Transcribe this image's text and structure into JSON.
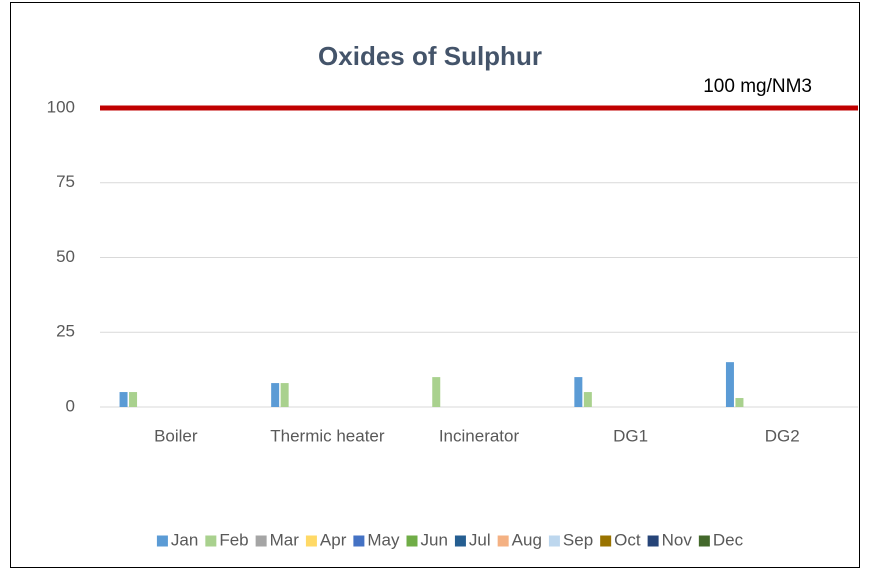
{
  "chart_data": {
    "type": "bar",
    "title": "Oxides of Sulphur",
    "categories": [
      "Boiler",
      "Thermic heater",
      "Incinerator",
      "DG1",
      "DG2"
    ],
    "series": [
      {
        "name": "Jan",
        "color": "#5b9bd5",
        "values": [
          5,
          8,
          null,
          10,
          15
        ]
      },
      {
        "name": "Feb",
        "color": "#a9d18e",
        "values": [
          5,
          8,
          10,
          5,
          3
        ]
      },
      {
        "name": "Mar",
        "color": "#a5a5a5",
        "values": [
          null,
          null,
          null,
          null,
          null
        ]
      },
      {
        "name": "Apr",
        "color": "#ffd966",
        "values": [
          null,
          null,
          null,
          null,
          null
        ]
      },
      {
        "name": "May",
        "color": "#4472c4",
        "values": [
          null,
          null,
          null,
          null,
          null
        ]
      },
      {
        "name": "Jun",
        "color": "#70ad47",
        "values": [
          null,
          null,
          null,
          null,
          null
        ]
      },
      {
        "name": "Jul",
        "color": "#255e91",
        "values": [
          null,
          null,
          null,
          null,
          null
        ]
      },
      {
        "name": "Aug",
        "color": "#f4b183",
        "values": [
          null,
          null,
          null,
          null,
          null
        ]
      },
      {
        "name": "Sep",
        "color": "#bdd7ee",
        "values": [
          null,
          null,
          null,
          null,
          null
        ]
      },
      {
        "name": "Oct",
        "color": "#997300",
        "values": [
          null,
          null,
          null,
          null,
          null
        ]
      },
      {
        "name": "Nov",
        "color": "#264478",
        "values": [
          null,
          null,
          null,
          null,
          null
        ]
      },
      {
        "name": "Dec",
        "color": "#43682b",
        "values": [
          null,
          null,
          null,
          null,
          null
        ]
      }
    ],
    "reference_line": {
      "value": 100,
      "label": "100 mg/NM3",
      "color": "#c00000"
    },
    "ylim": [
      0,
      100
    ],
    "yticks": [
      0,
      25,
      50,
      75,
      100
    ],
    "grid": true,
    "legend": "bottom"
  }
}
